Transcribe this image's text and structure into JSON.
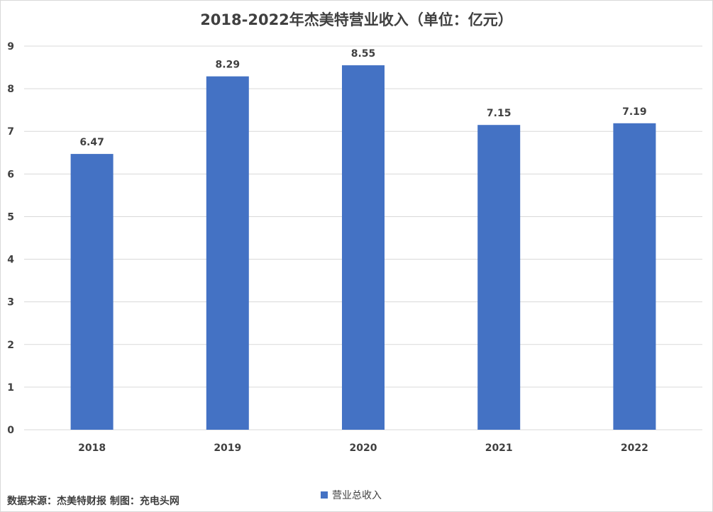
{
  "chart_data": {
    "type": "bar",
    "title": "2018-2022年杰美特营业收入（单位：亿元）",
    "categories": [
      "2018",
      "2019",
      "2020",
      "2021",
      "2022"
    ],
    "series": [
      {
        "name": "营业总收入",
        "values": [
          6.47,
          8.29,
          8.55,
          7.15,
          7.19
        ]
      }
    ],
    "data_labels": [
      "6.47",
      "8.29",
      "8.55",
      "7.15",
      "7.19"
    ],
    "yticks": [
      "0",
      "1",
      "2",
      "3",
      "4",
      "5",
      "6",
      "7",
      "8",
      "9"
    ],
    "ylim": [
      0,
      9
    ],
    "grid": true,
    "legend": "bottom-center",
    "bar_color": "#4472c4"
  },
  "footer": {
    "source": "数据来源：杰美特财报  制图：充电头网"
  }
}
